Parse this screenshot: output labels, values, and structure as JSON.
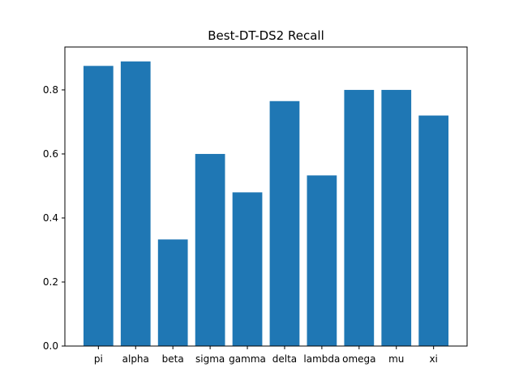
{
  "chart_data": {
    "type": "bar",
    "title": "Best-DT-DS2 Recall",
    "xlabel": "",
    "ylabel": "",
    "categories": [
      "pi",
      "alpha",
      "beta",
      "sigma",
      "gamma",
      "delta",
      "lambda",
      "omega",
      "mu",
      "xi"
    ],
    "values": [
      0.875,
      0.889,
      0.333,
      0.6,
      0.48,
      0.765,
      0.533,
      0.8,
      0.8,
      0.72
    ],
    "ylim": [
      0,
      0.934
    ],
    "yticks": [
      0.0,
      0.2,
      0.4,
      0.6,
      0.8
    ],
    "ytick_labels": [
      "0.0",
      "0.2",
      "0.4",
      "0.6",
      "0.8"
    ],
    "bar_color": "#1f77b4",
    "grid": false,
    "legend": "none"
  }
}
